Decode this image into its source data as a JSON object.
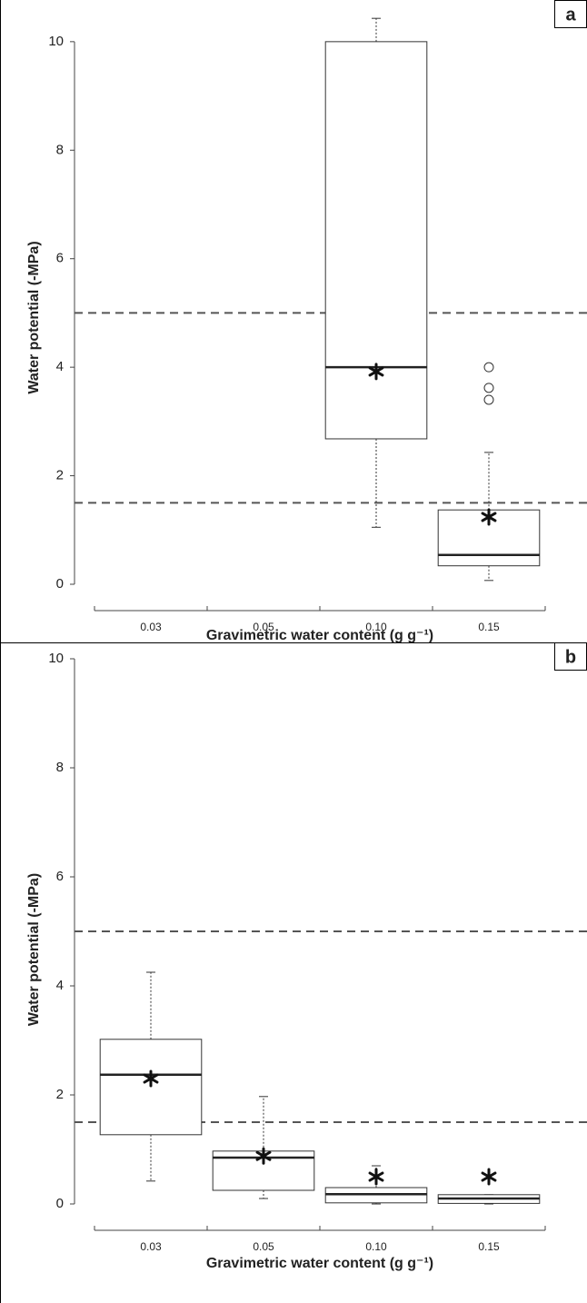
{
  "chart_data": [
    {
      "type": "box",
      "panel_label": "a",
      "y_label": "Water potential (-MPa)",
      "x_label": "Gravimetric water content (g g⁻¹)",
      "categories": [
        "0.03",
        "0.05",
        "0.10",
        "0.15"
      ],
      "boxes": [
        null,
        null,
        {
          "min": 1.05,
          "q1": 2.68,
          "median": 4.0,
          "q3": 10.0,
          "max": 10.43,
          "mean": 3.92,
          "outliers": []
        },
        {
          "min": 0.07,
          "q1": 0.34,
          "median": 0.54,
          "q3": 1.37,
          "max": 2.43,
          "mean": 1.24,
          "outliers": [
            3.4,
            3.62,
            4.0
          ]
        }
      ],
      "reference_lines": [
        5,
        1.5
      ],
      "ylim": [
        0,
        10.5
      ],
      "yticks": [
        0,
        2,
        4,
        6,
        8,
        10
      ]
    },
    {
      "type": "box",
      "panel_label": "b",
      "y_label": "Water potential (-MPa)",
      "x_label": "Gravimetric water content (g g⁻¹)",
      "categories": [
        "0.03",
        "0.05",
        "0.10",
        "0.15"
      ],
      "boxes": [
        {
          "min": 0.42,
          "q1": 1.27,
          "median": 2.37,
          "q3": 3.02,
          "max": 4.25,
          "mean": 2.3,
          "outliers": []
        },
        {
          "min": 0.1,
          "q1": 0.25,
          "median": 0.85,
          "q3": 0.97,
          "max": 1.97,
          "mean": 0.88,
          "outliers": []
        },
        {
          "min": 0,
          "q1": 0.02,
          "median": 0.18,
          "q3": 0.3,
          "max": 0.7,
          "mean": 0.5,
          "outliers": []
        },
        {
          "min": 0,
          "q1": 0.01,
          "median": 0.1,
          "q3": 0.17,
          "max": 0.17,
          "mean": 0.5,
          "outliers": []
        }
      ],
      "reference_lines": [
        5,
        1.5
      ],
      "ylim": [
        0,
        10
      ],
      "yticks": [
        0,
        2,
        4,
        6,
        8,
        10
      ]
    }
  ]
}
